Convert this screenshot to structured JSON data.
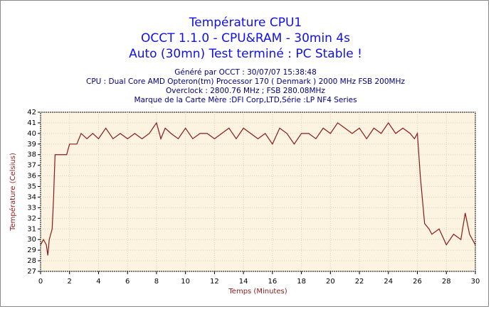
{
  "chart_data": {
    "type": "line",
    "title": [
      "Température CPU1",
      "OCCT 1.1.0 - CPU&RAM - 30min 4s",
      "Auto (30mn) Test terminé : PC Stable !"
    ],
    "subtitle": [
      "Généré par OCCT : 30/07/07 15:38:48",
      "CPU : Dual Core AMD Opteron(tm) Processor 170    ( Denmark ) 2000 MHz FSB 200MHz",
      "Overclock : 2800.76 MHz ; FSB 280.08MHz",
      "Marque de la Carte Mère :DFI Corp,LTD,Série :LP NF4 Series"
    ],
    "xlabel": "Temps (Minutes)",
    "ylabel": "Température (Celsius)",
    "x": [
      0,
      0.2,
      0.4,
      0.5,
      0.6,
      0.8,
      0.9,
      1.0,
      1.2,
      1.8,
      2.0,
      2.5,
      2.8,
      3.2,
      3.6,
      4.0,
      4.5,
      5.0,
      5.5,
      6.0,
      6.5,
      7.0,
      7.5,
      8.0,
      8.3,
      8.6,
      9.0,
      9.5,
      10.0,
      10.5,
      11.0,
      11.5,
      12.0,
      12.5,
      13.0,
      13.5,
      14.0,
      14.5,
      15.0,
      15.5,
      16.0,
      16.5,
      17.0,
      17.5,
      18.0,
      18.5,
      19.0,
      19.5,
      20.0,
      20.5,
      21.0,
      21.5,
      22.0,
      22.5,
      23.0,
      23.5,
      24.0,
      24.5,
      25.0,
      25.5,
      25.8,
      26.0,
      26.2,
      26.5,
      26.8,
      27.0,
      27.5,
      28.0,
      28.5,
      29.0,
      29.3,
      29.6,
      30.0
    ],
    "series": [
      {
        "name": "CPU1",
        "color": "#8b1a1a",
        "values": [
          29.5,
          30,
          29.5,
          28.5,
          30,
          31,
          34,
          38,
          38,
          38,
          39,
          39,
          40,
          39.5,
          40,
          39.5,
          40.5,
          39.5,
          40,
          39.5,
          40,
          39.5,
          40,
          41,
          39.5,
          40.5,
          40,
          39.5,
          40.5,
          39.5,
          40,
          40,
          39.5,
          40,
          40.5,
          39.5,
          40.5,
          40,
          39.5,
          40,
          39,
          40.5,
          40,
          39,
          40,
          40,
          39.5,
          40.5,
          40,
          41,
          40.5,
          40,
          40.5,
          39.5,
          40.5,
          40,
          41,
          40,
          40.5,
          40,
          39.5,
          40,
          36,
          31.5,
          31,
          30.5,
          31,
          29.5,
          30.5,
          30,
          32.5,
          30.5,
          29.5
        ]
      }
    ],
    "xlim": [
      0,
      30
    ],
    "xticks": [
      0,
      2,
      4,
      6,
      8,
      10,
      12,
      14,
      16,
      18,
      20,
      22,
      24,
      26,
      28,
      30
    ],
    "ylim": [
      27,
      42
    ],
    "yticks": [
      27,
      28,
      29,
      30,
      31,
      32,
      33,
      34,
      35,
      36,
      37,
      38,
      39,
      40,
      41,
      42
    ],
    "grid": true
  }
}
